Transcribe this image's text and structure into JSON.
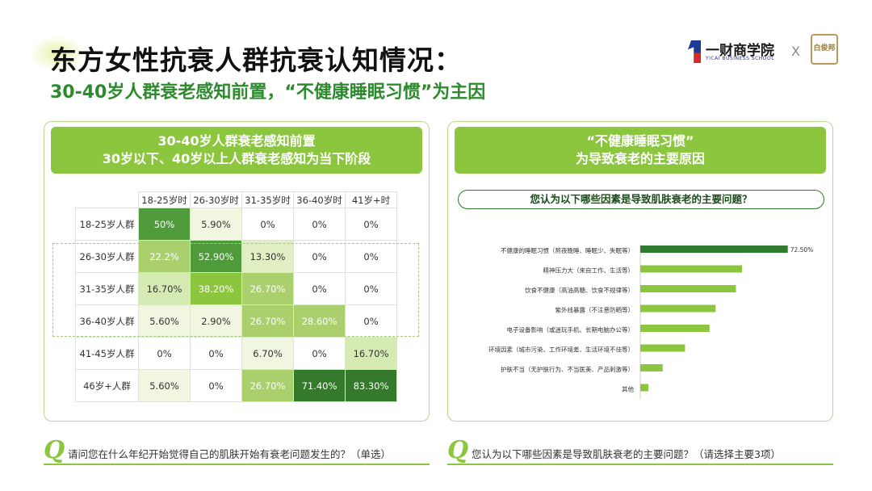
{
  "header": {
    "title": "东方女性抗衰人群抗衰认知情况：",
    "subtitle": "30-40岁人群衰老感知前置，“不健康睡眠习惯”为主因"
  },
  "logo": {
    "name": "一财商学院",
    "english": "YICAI BUSINESS SCHOOL",
    "separator": "X",
    "badge": "白俊邦"
  },
  "left_panel": {
    "header_line1": "30-40岁人群衰老感知前置",
    "header_line2": "30岁以下、40岁以上人群衰老感知为当下阶段"
  },
  "right_panel": {
    "header_line1": "“不健康睡眠习惯”",
    "header_line2": "为导致衰老的主要原因",
    "question": "您认为以下哪些因素是导致肌肤衰老的主要问题？"
  },
  "footer": {
    "left_q": "Q",
    "left_text": "请问您在什么年纪开始觉得自己的肌肤开始有衰老问题发生的？（单选）",
    "right_q": "Q",
    "right_text": "您认为以下哪些因素是导致肌肤衰老的主要问题？（请选择主要3项）"
  },
  "colors": {
    "accent": "#8cc63f",
    "dark_green": "#2e7a2e",
    "bar": "#8cc63f",
    "bar_top": "#2e7a2e"
  },
  "chart_data": [
    {
      "type": "heatmap",
      "columns": [
        "18-25岁时",
        "26-30岁时",
        "31-35岁时",
        "36-40岁时",
        "41岁+时"
      ],
      "rows": [
        "18-25岁人群",
        "26-30岁人群",
        "31-35岁人群",
        "36-40岁人群",
        "41-45岁人群",
        "46岁+人群"
      ],
      "labels": [
        [
          "50%",
          "5.90%",
          "0%",
          "0%",
          "0%"
        ],
        [
          "22.2%",
          "52.90%",
          "13.30%",
          "0%",
          "0%"
        ],
        [
          "16.70%",
          "38.20%",
          "26.70%",
          "0%",
          "0%"
        ],
        [
          "5.60%",
          "2.90%",
          "26.70%",
          "28.60%",
          "0%"
        ],
        [
          "0%",
          "0%",
          "6.70%",
          "0%",
          "16.70%"
        ],
        [
          "5.60%",
          "0%",
          "26.70%",
          "71.40%",
          "83.30%"
        ]
      ],
      "values": [
        [
          50,
          5.9,
          0,
          0,
          0
        ],
        [
          22.2,
          52.9,
          13.3,
          0,
          0
        ],
        [
          16.7,
          38.2,
          26.7,
          0,
          0
        ],
        [
          5.6,
          2.9,
          26.7,
          28.6,
          0
        ],
        [
          0,
          0,
          6.7,
          0,
          16.7
        ],
        [
          5.6,
          0,
          26.7,
          71.4,
          83.3
        ]
      ]
    },
    {
      "type": "bar",
      "orientation": "horizontal",
      "categories": [
        "不健康的睡眠习惯（熬夜晚睡、睡眠少、失眠等）",
        "精神压力大（来自工作、生活等）",
        "饮食不健康（高油高糖、饮食不规律等）",
        "紫外线暴露（不注意防晒等）",
        "电子设备影响（或迷玩手机、长期电脑办公等）",
        "环境因素（城市污染、工作环境差、生活环境不佳等）",
        "护肤不当（无护肤行为、不当医美、产品刺激等）",
        "其他"
      ],
      "values": [
        72.5,
        50,
        47,
        37,
        34,
        22,
        11,
        4
      ],
      "value_labels": [
        "72.50%",
        "",
        "",
        "",
        "",
        "",
        "",
        ""
      ],
      "xlim": [
        0,
        100
      ]
    }
  ]
}
